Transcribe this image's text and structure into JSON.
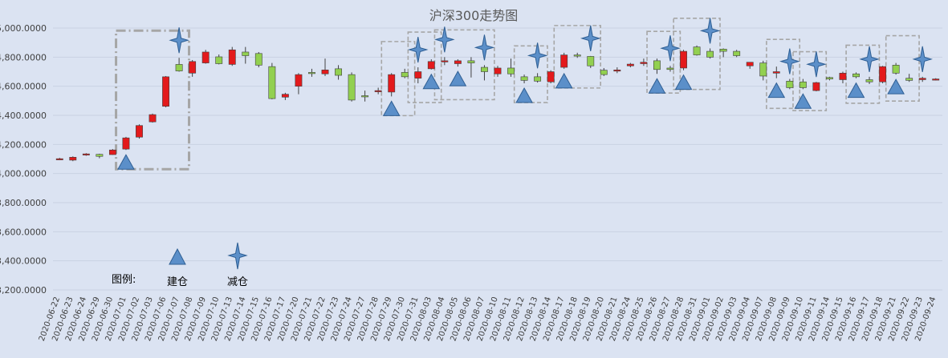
{
  "chart_data": {
    "type": "candlestick",
    "title": "沪深300走势图",
    "xlabel": "",
    "ylabel": "",
    "ylim": [
      3200,
      5000
    ],
    "y_ticks": [
      3200,
      3400,
      3600,
      3800,
      4000,
      4200,
      4400,
      4600,
      4800,
      5000
    ],
    "y_tick_labels": [
      "3,200.0000",
      "3,400.0000",
      "3,600.0000",
      "3,800.0000",
      "4,000.0000",
      "4,200.0000",
      "4,400.0000",
      "4,600.0000",
      "4,800.0000",
      "5,000.0000"
    ],
    "grid": true,
    "categories": [
      "2020-06-22",
      "2020-06-23",
      "2020-06-24",
      "2020-06-29",
      "2020-06-30",
      "2020-07-01",
      "2020-07-02",
      "2020-07-03",
      "2020-07-06",
      "2020-07-07",
      "2020-07-08",
      "2020-07-09",
      "2020-07-10",
      "2020-07-13",
      "2020-07-14",
      "2020-07-15",
      "2020-07-16",
      "2020-07-17",
      "2020-07-20",
      "2020-07-21",
      "2020-07-22",
      "2020-07-23",
      "2020-07-24",
      "2020-07-27",
      "2020-07-28",
      "2020-07-29",
      "2020-07-30",
      "2020-07-31",
      "2020-08-03",
      "2020-08-04",
      "2020-08-05",
      "2020-08-06",
      "2020-08-07",
      "2020-08-10",
      "2020-08-11",
      "2020-08-12",
      "2020-08-13",
      "2020-08-14",
      "2020-08-17",
      "2020-08-18",
      "2020-08-19",
      "2020-08-20",
      "2020-08-21",
      "2020-08-24",
      "2020-08-25",
      "2020-08-26",
      "2020-08-27",
      "2020-08-28",
      "2020-08-31",
      "2020-09-01",
      "2020-09-02",
      "2020-09-03",
      "2020-09-04",
      "2020-09-07",
      "2020-09-08",
      "2020-09-09",
      "2020-09-10",
      "2020-09-11",
      "2020-09-14",
      "2020-09-15",
      "2020-09-16",
      "2020-09-17",
      "2020-09-18",
      "2020-09-21",
      "2020-09-22",
      "2020-09-23",
      "2020-09-24"
    ],
    "ohlc": [
      [
        4098,
        4108,
        4092,
        4102
      ],
      [
        4092,
        4118,
        4085,
        4112
      ],
      [
        4128,
        4140,
        4122,
        4135
      ],
      [
        4132,
        4136,
        4105,
        4118
      ],
      [
        4130,
        4168,
        4128,
        4162
      ],
      [
        4168,
        4252,
        4162,
        4245
      ],
      [
        4250,
        4338,
        4240,
        4330
      ],
      [
        4355,
        4412,
        4350,
        4405
      ],
      [
        4462,
        4670,
        4455,
        4665
      ],
      [
        4750,
        4795,
        4700,
        4705
      ],
      [
        4690,
        4780,
        4665,
        4770
      ],
      [
        4760,
        4850,
        4755,
        4835
      ],
      [
        4802,
        4818,
        4750,
        4755
      ],
      [
        4750,
        4870,
        4740,
        4850
      ],
      [
        4835,
        4870,
        4755,
        4810
      ],
      [
        4825,
        4835,
        4730,
        4745
      ],
      [
        4735,
        4760,
        4510,
        4515
      ],
      [
        4525,
        4555,
        4505,
        4545
      ],
      [
        4600,
        4690,
        4545,
        4680
      ],
      [
        4695,
        4720,
        4665,
        4690
      ],
      [
        4685,
        4790,
        4670,
        4712
      ],
      [
        4720,
        4745,
        4645,
        4675
      ],
      [
        4680,
        4695,
        4495,
        4505
      ],
      [
        4535,
        4570,
        4495,
        4530
      ],
      [
        4565,
        4590,
        4545,
        4570
      ],
      [
        4560,
        4690,
        4530,
        4680
      ],
      [
        4695,
        4720,
        4655,
        4665
      ],
      [
        4655,
        4730,
        4620,
        4700
      ],
      [
        4720,
        4785,
        4715,
        4770
      ],
      [
        4770,
        4800,
        4745,
        4775
      ],
      [
        4755,
        4785,
        4735,
        4775
      ],
      [
        4775,
        4800,
        4660,
        4760
      ],
      [
        4730,
        4745,
        4640,
        4700
      ],
      [
        4685,
        4740,
        4665,
        4725
      ],
      [
        4725,
        4790,
        4665,
        4685
      ],
      [
        4665,
        4680,
        4620,
        4640
      ],
      [
        4665,
        4690,
        4625,
        4635
      ],
      [
        4630,
        4710,
        4620,
        4700
      ],
      [
        4730,
        4830,
        4720,
        4815
      ],
      [
        4815,
        4830,
        4795,
        4808
      ],
      [
        4805,
        4808,
        4725,
        4740
      ],
      [
        4710,
        4725,
        4670,
        4680
      ],
      [
        4705,
        4730,
        4690,
        4712
      ],
      [
        4740,
        4760,
        4730,
        4752
      ],
      [
        4755,
        4790,
        4740,
        4765
      ],
      [
        4775,
        4790,
        4685,
        4715
      ],
      [
        4725,
        4740,
        4700,
        4715
      ],
      [
        4725,
        4850,
        4710,
        4840
      ],
      [
        4870,
        4880,
        4810,
        4815
      ],
      [
        4840,
        4860,
        4790,
        4800
      ],
      [
        4855,
        4860,
        4800,
        4840
      ],
      [
        4840,
        4850,
        4800,
        4810
      ],
      [
        4740,
        4760,
        4720,
        4765
      ],
      [
        4760,
        4775,
        4640,
        4670
      ],
      [
        4690,
        4735,
        4655,
        4700
      ],
      [
        4635,
        4650,
        4580,
        4590
      ],
      [
        4630,
        4650,
        4580,
        4590
      ],
      [
        4570,
        4630,
        4565,
        4625
      ],
      [
        4660,
        4665,
        4640,
        4650
      ],
      [
        4645,
        4700,
        4620,
        4690
      ],
      [
        4685,
        4695,
        4655,
        4665
      ],
      [
        4645,
        4665,
        4615,
        4630
      ],
      [
        4630,
        4740,
        4620,
        4735
      ],
      [
        4745,
        4760,
        4680,
        4690
      ],
      [
        4655,
        4685,
        4630,
        4640
      ],
      [
        4645,
        4665,
        4630,
        4655
      ],
      [
        4645,
        4655,
        4640,
        4650
      ]
    ],
    "up_color": "#e31a1c",
    "down_color": "#92d050",
    "build_markers": [
      5,
      25,
      28,
      30,
      35,
      38,
      45,
      47,
      54,
      56,
      60,
      63
    ],
    "reduce_markers": [
      9,
      27,
      29,
      32,
      36,
      40,
      46,
      49,
      55,
      57,
      61,
      65
    ],
    "highlight_groups": [
      [
        5,
        9
      ],
      [
        25,
        26
      ],
      [
        27,
        28
      ],
      [
        29,
        32
      ],
      [
        35,
        36
      ],
      [
        38,
        40
      ],
      [
        45,
        46
      ],
      [
        47,
        49
      ],
      [
        54,
        55
      ],
      [
        56,
        57
      ],
      [
        60,
        61
      ],
      [
        63,
        64
      ]
    ],
    "marker_color": "#5b8fc9",
    "legend": {
      "label": "图例:",
      "build_label": "建仓",
      "reduce_label": "减仓"
    }
  }
}
